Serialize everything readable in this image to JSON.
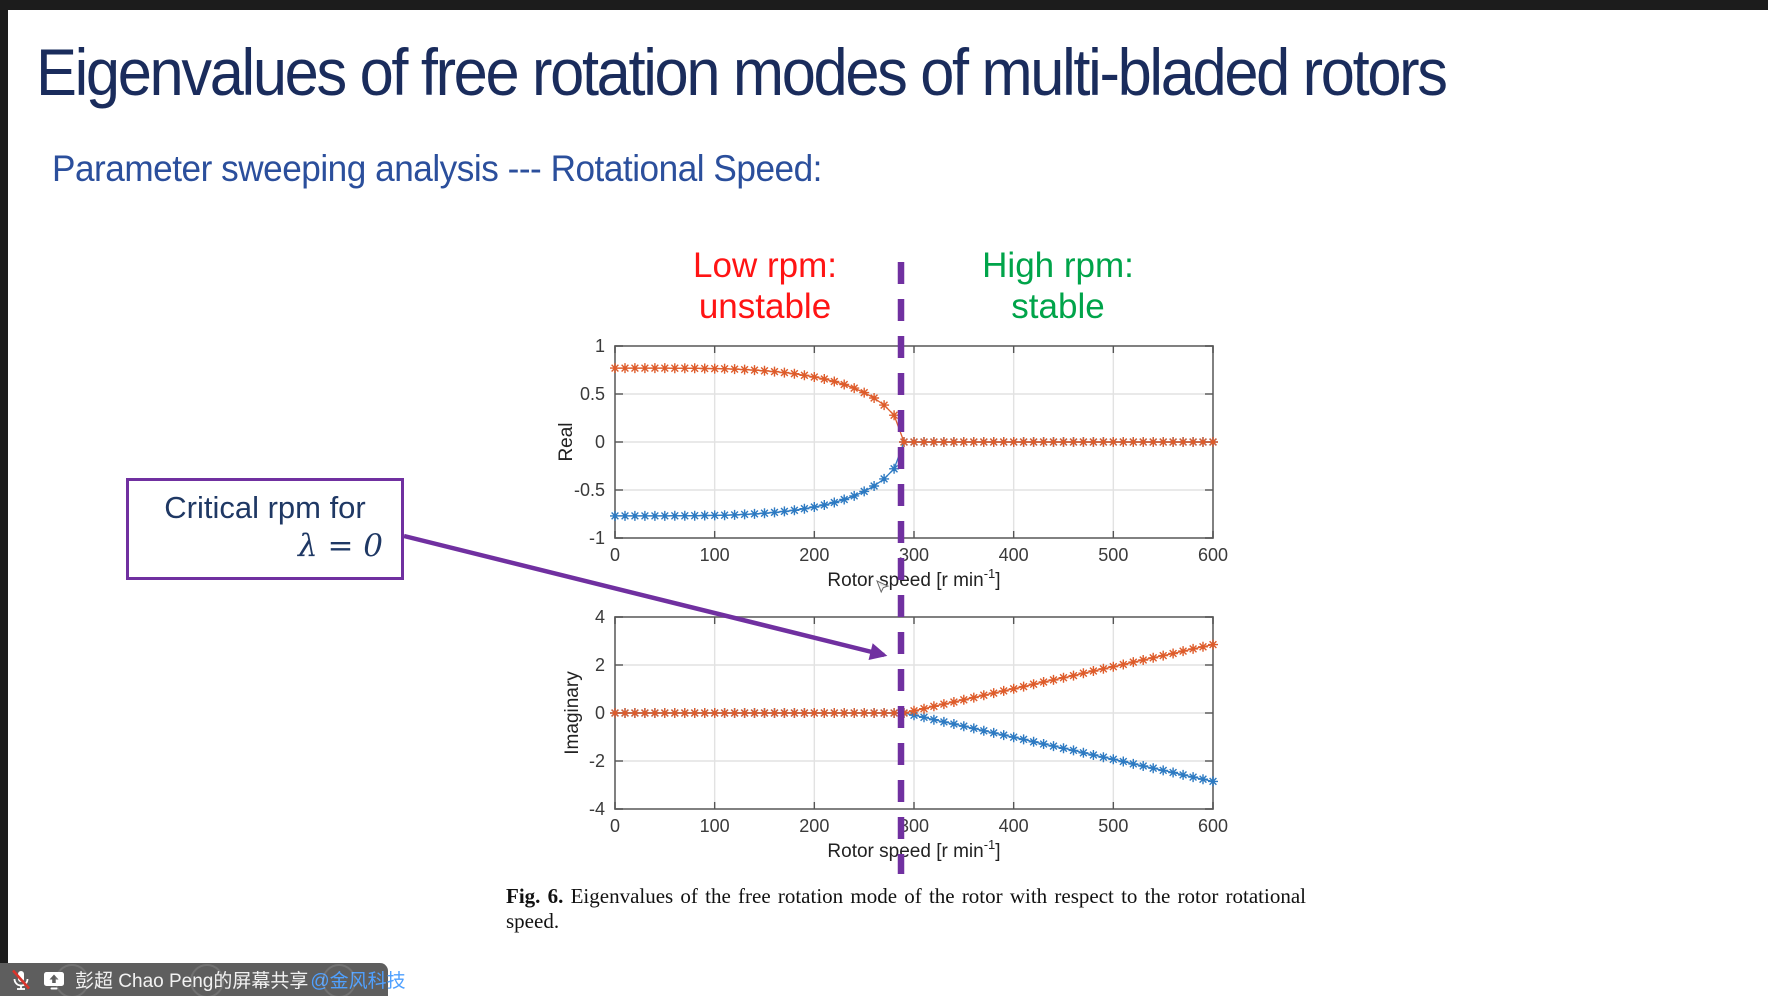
{
  "slide": {
    "title": "Eigenvalues of free rotation modes of multi-bladed rotors",
    "subtitle": "Parameter sweeping analysis --- Rotational Speed:"
  },
  "annotations": {
    "low_rpm": {
      "line1": "Low rpm:",
      "line2": "unstable",
      "color": "#FF1414"
    },
    "high_rpm": {
      "line1": "High rpm:",
      "line2": "stable",
      "color": "#00A44A"
    },
    "callout": {
      "line1": "Critical rpm for",
      "line2": "λ = 0",
      "border_color": "#7030A0"
    },
    "critical_line": {
      "color": "#7030A0",
      "rpm": 290
    }
  },
  "caption": {
    "label": "Fig. 6.",
    "text": "Eigenvalues of the free rotation mode of the rotor with respect to the rotor rotational speed."
  },
  "share_bar": {
    "presenter_text": "彭超 Chao Peng的屏幕共享",
    "mention": "@金风科技",
    "mic_state": "muted",
    "bar_color": "#5E5E5E",
    "mention_color": "#4FA0FF"
  },
  "colors": {
    "series_orange": "#DE5C2B",
    "series_blue": "#2D7AC2",
    "grid": "#E2E2E2",
    "axis_border": "#737373",
    "tick_text": "#3A3A3A"
  },
  "chart_data": [
    {
      "type": "line",
      "title": "",
      "ylabel": "Real",
      "xlabel_base": "Rotor speed [r min",
      "xlabel_sup": "-1",
      "xlabel_close": "]",
      "xlim": [
        0,
        600
      ],
      "ylim": [
        -1,
        1
      ],
      "xticks": [
        "0",
        "100",
        "200",
        "300",
        "400",
        "500",
        "600"
      ],
      "xtick_values": [
        0,
        100,
        200,
        300,
        400,
        500,
        600
      ],
      "yticks": [
        "1",
        "0.5",
        "0",
        "-0.5",
        "-1"
      ],
      "ytick_values": [
        1,
        0.5,
        0,
        -0.5,
        -1
      ],
      "grid": true,
      "marker": "asterisk",
      "x": [
        0,
        10,
        20,
        30,
        40,
        50,
        60,
        70,
        80,
        90,
        100,
        110,
        120,
        130,
        140,
        150,
        160,
        170,
        180,
        190,
        200,
        210,
        220,
        230,
        240,
        250,
        260,
        270,
        280,
        290,
        300,
        310,
        320,
        330,
        340,
        350,
        360,
        370,
        380,
        390,
        400,
        410,
        420,
        430,
        440,
        450,
        460,
        470,
        480,
        490,
        500,
        510,
        520,
        530,
        540,
        550,
        560,
        570,
        580,
        590,
        600
      ],
      "series": [
        {
          "name": "negative-branch",
          "color": "#2D7AC2",
          "values": [
            -0.77,
            -0.77,
            -0.77,
            -0.77,
            -0.77,
            -0.77,
            -0.769,
            -0.769,
            -0.768,
            -0.766,
            -0.765,
            -0.762,
            -0.759,
            -0.754,
            -0.749,
            -0.742,
            -0.733,
            -0.723,
            -0.711,
            -0.695,
            -0.677,
            -0.656,
            -0.63,
            -0.599,
            -0.561,
            -0.515,
            -0.458,
            -0.384,
            -0.279,
            0,
            0,
            0,
            0,
            0,
            0,
            0,
            0,
            0,
            0,
            0,
            0,
            0,
            0,
            0,
            0,
            0,
            0,
            0,
            0,
            0,
            0,
            0,
            0,
            0,
            0,
            0,
            0,
            0,
            0,
            0,
            0
          ]
        },
        {
          "name": "positive-branch",
          "color": "#DE5C2B",
          "values": [
            0.77,
            0.77,
            0.77,
            0.77,
            0.77,
            0.77,
            0.769,
            0.769,
            0.768,
            0.766,
            0.765,
            0.762,
            0.759,
            0.754,
            0.749,
            0.742,
            0.733,
            0.723,
            0.711,
            0.695,
            0.677,
            0.656,
            0.63,
            0.599,
            0.561,
            0.515,
            0.458,
            0.384,
            0.279,
            0,
            0,
            0,
            0,
            0,
            0,
            0,
            0,
            0,
            0,
            0,
            0,
            0,
            0,
            0,
            0,
            0,
            0,
            0,
            0,
            0,
            0,
            0,
            0,
            0,
            0,
            0,
            0,
            0,
            0,
            0,
            0
          ]
        }
      ]
    },
    {
      "type": "line",
      "title": "",
      "ylabel": "Imaginary",
      "xlabel_base": "Rotor speed [r min",
      "xlabel_sup": "-1",
      "xlabel_close": "]",
      "xlim": [
        0,
        600
      ],
      "ylim": [
        -4,
        4
      ],
      "xticks": [
        "0",
        "100",
        "200",
        "300",
        "400",
        "500",
        "600"
      ],
      "xtick_values": [
        0,
        100,
        200,
        300,
        400,
        500,
        600
      ],
      "yticks": [
        "4",
        "2",
        "0",
        "-2",
        "-4"
      ],
      "ytick_values": [
        4,
        2,
        0,
        -2,
        -4
      ],
      "grid": true,
      "marker": "asterisk",
      "x": [
        0,
        10,
        20,
        30,
        40,
        50,
        60,
        70,
        80,
        90,
        100,
        110,
        120,
        130,
        140,
        150,
        160,
        170,
        180,
        190,
        200,
        210,
        220,
        230,
        240,
        250,
        260,
        270,
        280,
        290,
        300,
        310,
        320,
        330,
        340,
        350,
        360,
        370,
        380,
        390,
        400,
        410,
        420,
        430,
        440,
        450,
        460,
        470,
        480,
        490,
        500,
        510,
        520,
        530,
        540,
        550,
        560,
        570,
        580,
        590,
        600
      ],
      "series": [
        {
          "name": "negative-branch",
          "color": "#2D7AC2",
          "values": [
            0,
            0,
            0,
            0,
            0,
            0,
            0,
            0,
            0,
            0,
            0,
            0,
            0,
            0,
            0,
            0,
            0,
            0,
            0,
            0,
            0,
            0,
            0,
            0,
            0,
            0,
            0,
            0,
            0,
            0,
            -0.09,
            -0.18,
            -0.28,
            -0.37,
            -0.46,
            -0.55,
            -0.64,
            -0.74,
            -0.83,
            -0.92,
            -1.01,
            -1.1,
            -1.2,
            -1.29,
            -1.38,
            -1.47,
            -1.56,
            -1.66,
            -1.75,
            -1.84,
            -1.93,
            -2.02,
            -2.12,
            -2.21,
            -2.3,
            -2.39,
            -2.48,
            -2.58,
            -2.67,
            -2.76,
            -2.85
          ]
        },
        {
          "name": "positive-branch",
          "color": "#DE5C2B",
          "values": [
            0,
            0,
            0,
            0,
            0,
            0,
            0,
            0,
            0,
            0,
            0,
            0,
            0,
            0,
            0,
            0,
            0,
            0,
            0,
            0,
            0,
            0,
            0,
            0,
            0,
            0,
            0,
            0,
            0,
            0,
            0.09,
            0.18,
            0.28,
            0.37,
            0.46,
            0.55,
            0.64,
            0.74,
            0.83,
            0.92,
            1.01,
            1.1,
            1.2,
            1.29,
            1.38,
            1.47,
            1.56,
            1.66,
            1.75,
            1.84,
            1.93,
            2.02,
            2.12,
            2.21,
            2.3,
            2.39,
            2.48,
            2.58,
            2.67,
            2.76,
            2.85
          ]
        }
      ]
    }
  ]
}
